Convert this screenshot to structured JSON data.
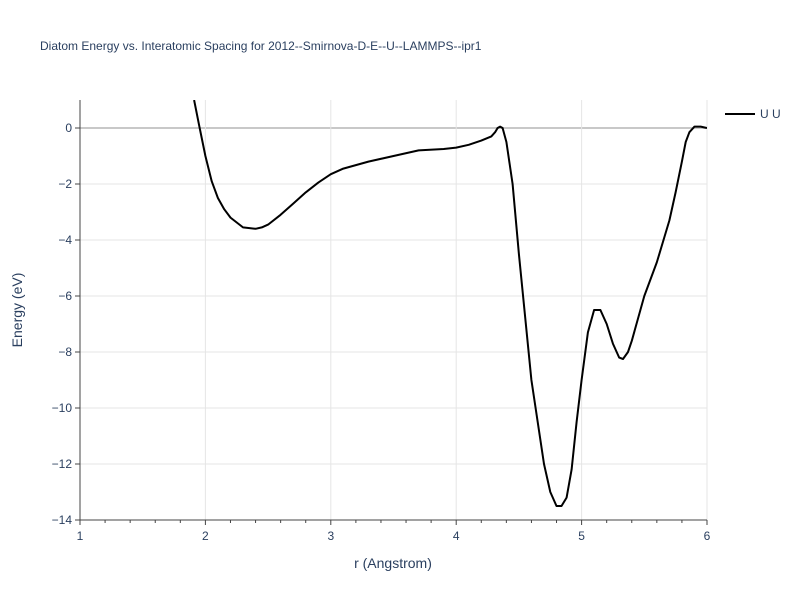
{
  "chart_data": {
    "type": "line",
    "title": "Diatom Energy vs. Interatomic Spacing for 2012--Smirnova-D-E--U--LAMMPS--ipr1",
    "xlabel": "r (Angstrom)",
    "ylabel": "Energy (eV)",
    "xlim": [
      1,
      6
    ],
    "ylim": [
      -14,
      1
    ],
    "xticks": [
      1,
      2,
      3,
      4,
      5,
      6
    ],
    "yticks": [
      -14,
      -12,
      -10,
      -8,
      -6,
      -4,
      -2,
      0
    ],
    "grid": true,
    "legend_position": "top-right",
    "line_color": "#000000",
    "series": [
      {
        "name": "U U",
        "x": [
          1.91,
          1.95,
          2.0,
          2.05,
          2.1,
          2.15,
          2.2,
          2.3,
          2.4,
          2.45,
          2.5,
          2.6,
          2.7,
          2.8,
          2.9,
          3.0,
          3.1,
          3.3,
          3.5,
          3.7,
          3.9,
          4.0,
          4.1,
          4.2,
          4.28,
          4.31,
          4.33,
          4.35,
          4.37,
          4.4,
          4.45,
          4.5,
          4.6,
          4.7,
          4.75,
          4.8,
          4.84,
          4.88,
          4.92,
          4.96,
          5.0,
          5.05,
          5.1,
          5.15,
          5.2,
          5.25,
          5.3,
          5.33,
          5.37,
          5.4,
          5.5,
          5.6,
          5.7,
          5.75,
          5.8,
          5.83,
          5.86,
          5.9,
          5.95,
          6.0
        ],
        "y": [
          1.0,
          0.1,
          -1.0,
          -1.9,
          -2.5,
          -2.9,
          -3.2,
          -3.55,
          -3.6,
          -3.55,
          -3.45,
          -3.1,
          -2.7,
          -2.3,
          -1.95,
          -1.65,
          -1.45,
          -1.2,
          -1.0,
          -0.8,
          -0.75,
          -0.7,
          -0.6,
          -0.45,
          -0.3,
          -0.15,
          0.0,
          0.05,
          0.0,
          -0.5,
          -2.0,
          -4.5,
          -9.0,
          -12.0,
          -13.0,
          -13.5,
          -13.5,
          -13.2,
          -12.2,
          -10.5,
          -9.0,
          -7.3,
          -6.5,
          -6.5,
          -7.0,
          -7.7,
          -8.2,
          -8.25,
          -8.0,
          -7.6,
          -6.0,
          -4.8,
          -3.3,
          -2.3,
          -1.2,
          -0.5,
          -0.15,
          0.05,
          0.05,
          0.0
        ]
      }
    ]
  }
}
